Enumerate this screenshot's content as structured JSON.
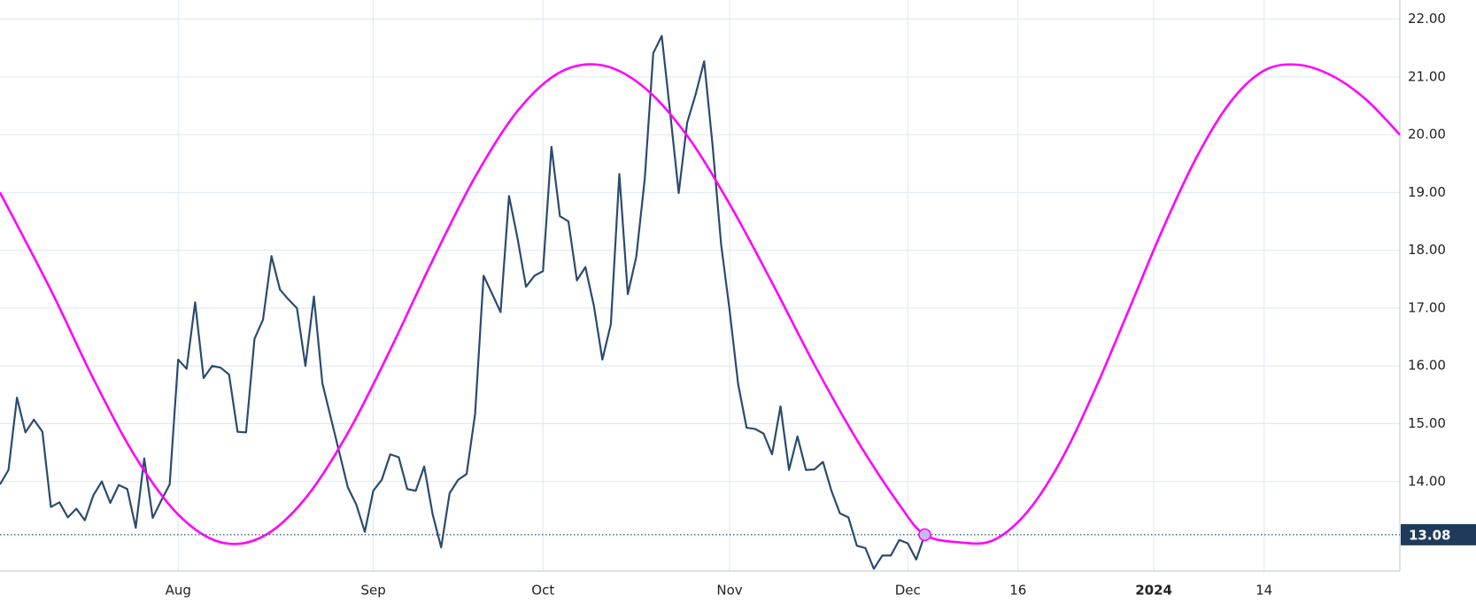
{
  "chart_data": {
    "type": "line",
    "series": [
      {
        "color": "#2b4b6f",
        "x": [
          "2023-06-30",
          "2023-07-03",
          "2023-07-05",
          "2023-07-06",
          "2023-07-07",
          "2023-07-10",
          "2023-07-11",
          "2023-07-12",
          "2023-07-13",
          "2023-07-14",
          "2023-07-17",
          "2023-07-18",
          "2023-07-19",
          "2023-07-20",
          "2023-07-21",
          "2023-07-24",
          "2023-07-25",
          "2023-07-26",
          "2023-07-27",
          "2023-07-28",
          "2023-07-31",
          "2023-08-01",
          "2023-08-02",
          "2023-08-03",
          "2023-08-04",
          "2023-08-07",
          "2023-08-08",
          "2023-08-09",
          "2023-08-10",
          "2023-08-11",
          "2023-08-14",
          "2023-08-15",
          "2023-08-16",
          "2023-08-17",
          "2023-08-18",
          "2023-08-21",
          "2023-08-22",
          "2023-08-23",
          "2023-08-24",
          "2023-08-25",
          "2023-08-28",
          "2023-08-29",
          "2023-08-30",
          "2023-08-31",
          "2023-09-01",
          "2023-09-05",
          "2023-09-06",
          "2023-09-07",
          "2023-09-08",
          "2023-09-11",
          "2023-09-12",
          "2023-09-13",
          "2023-09-14",
          "2023-09-15",
          "2023-09-18",
          "2023-09-19",
          "2023-09-20",
          "2023-09-21",
          "2023-09-22",
          "2023-09-25",
          "2023-09-26",
          "2023-09-27",
          "2023-09-28",
          "2023-09-29",
          "2023-10-02",
          "2023-10-03",
          "2023-10-04",
          "2023-10-05",
          "2023-10-06",
          "2023-10-09",
          "2023-10-10",
          "2023-10-11",
          "2023-10-12",
          "2023-10-13",
          "2023-10-16",
          "2023-10-17",
          "2023-10-18",
          "2023-10-19",
          "2023-10-20",
          "2023-10-23",
          "2023-10-24",
          "2023-10-25",
          "2023-10-26",
          "2023-10-27",
          "2023-10-30",
          "2023-10-31",
          "2023-11-01",
          "2023-11-02",
          "2023-11-03",
          "2023-11-06",
          "2023-11-07",
          "2023-11-08",
          "2023-11-09",
          "2023-11-10",
          "2023-11-13",
          "2023-11-14",
          "2023-11-15",
          "2023-11-16",
          "2023-11-17",
          "2023-11-20",
          "2023-11-21",
          "2023-11-22",
          "2023-11-24",
          "2023-11-27",
          "2023-11-28",
          "2023-11-29",
          "2023-11-30",
          "2023-12-01",
          "2023-12-04",
          "2023-12-05"
        ],
        "values": [
          13.95,
          14.2,
          15.45,
          14.85,
          15.07,
          14.86,
          13.56,
          13.64,
          13.38,
          13.53,
          13.33,
          13.76,
          14.0,
          13.63,
          13.94,
          13.87,
          13.2,
          14.4,
          13.37,
          13.67,
          13.95,
          16.11,
          15.95,
          17.1,
          15.79,
          16.0,
          15.97,
          15.85,
          14.86,
          14.85,
          16.47,
          16.8,
          17.9,
          17.32,
          17.15,
          17.0,
          16.0,
          17.2,
          15.7,
          15.1,
          14.5,
          13.9,
          13.6,
          13.13,
          13.84,
          14.03,
          14.47,
          14.42,
          13.87,
          13.84,
          14.26,
          13.43,
          12.86,
          13.8,
          14.03,
          14.13,
          15.17,
          17.56,
          17.25,
          16.93,
          18.94,
          18.21,
          17.37,
          17.56,
          17.64,
          19.79,
          18.59,
          18.5,
          17.48,
          17.71,
          17.04,
          16.11,
          16.72,
          19.32,
          17.24,
          17.89,
          19.24,
          21.41,
          21.71,
          20.37,
          18.99,
          20.21,
          20.7,
          21.27,
          19.8,
          18.1,
          16.96,
          15.69,
          14.93,
          14.91,
          14.83,
          14.47,
          15.3,
          14.2,
          14.78,
          14.2,
          14.21,
          14.34,
          13.84,
          13.45,
          13.38,
          12.89,
          12.85,
          12.49,
          12.72,
          12.72,
          12.99,
          12.93,
          12.65,
          13.08
        ]
      },
      {
        "color": "#ff00ff",
        "x": [
          "2023-06-30",
          "2023-07-11",
          "2023-07-18",
          "2023-07-25",
          "2023-08-01",
          "2023-08-08",
          "2023-08-15",
          "2023-08-22",
          "2023-08-29",
          "2023-09-06",
          "2023-09-13",
          "2023-09-20",
          "2023-09-27",
          "2023-10-04",
          "2023-10-11",
          "2023-10-18",
          "2023-10-25",
          "2023-11-01",
          "2023-11-08",
          "2023-11-15",
          "2023-11-22",
          "2023-11-30",
          "2023-12-05",
          "2023-12-09",
          "2023-12-13",
          "2023-12-17",
          "2023-12-21",
          "2023-12-25",
          "2023-12-29",
          "2024-01-02",
          "2024-01-06",
          "2024-01-10",
          "2024-01-14",
          "2024-01-18",
          "2024-01-22",
          "2024-01-26",
          "2024-01-30"
        ],
        "values": [
          19.0,
          17.31,
          15.78,
          14.42,
          13.43,
          12.95,
          13.05,
          13.71,
          14.84,
          16.28,
          17.83,
          19.27,
          20.41,
          21.08,
          21.2,
          20.81,
          19.98,
          18.8,
          17.44,
          16.02,
          14.72,
          13.6,
          13.08,
          12.95,
          12.98,
          13.46,
          14.35,
          15.57,
          16.95,
          18.35,
          19.6,
          20.56,
          21.11,
          21.21,
          21.02,
          20.61,
          20.0
        ]
      }
    ],
    "xlim": [
      "2023-06-30",
      "2024-01-30"
    ],
    "xticks": [
      {
        "value": "2023-08-01",
        "label": "Aug"
      },
      {
        "value": "2023-09-01",
        "label": "Sep"
      },
      {
        "value": "2023-10-02",
        "label": "Oct"
      },
      {
        "value": "2023-11-01",
        "label": "Nov"
      },
      {
        "value": "2023-12-01",
        "label": "Dec"
      },
      {
        "value": "2023-12-16",
        "label": "16"
      },
      {
        "value": "2024-01-01",
        "label": "2024"
      },
      {
        "value": "2024-01-14",
        "label": "14"
      }
    ],
    "ylim": [
      12.45,
      22.33
    ],
    "yticks": [
      {
        "value": 14,
        "label": "14.00"
      },
      {
        "value": 15,
        "label": "15.00"
      },
      {
        "value": 16,
        "label": "16.00"
      },
      {
        "value": 17,
        "label": "17.00"
      },
      {
        "value": 18,
        "label": "18.00"
      },
      {
        "value": 19,
        "label": "19.00"
      },
      {
        "value": 20,
        "label": "20.00"
      },
      {
        "value": 21,
        "label": "21.00"
      },
      {
        "value": 22,
        "label": "22.00"
      }
    ],
    "grid": true
  }
}
